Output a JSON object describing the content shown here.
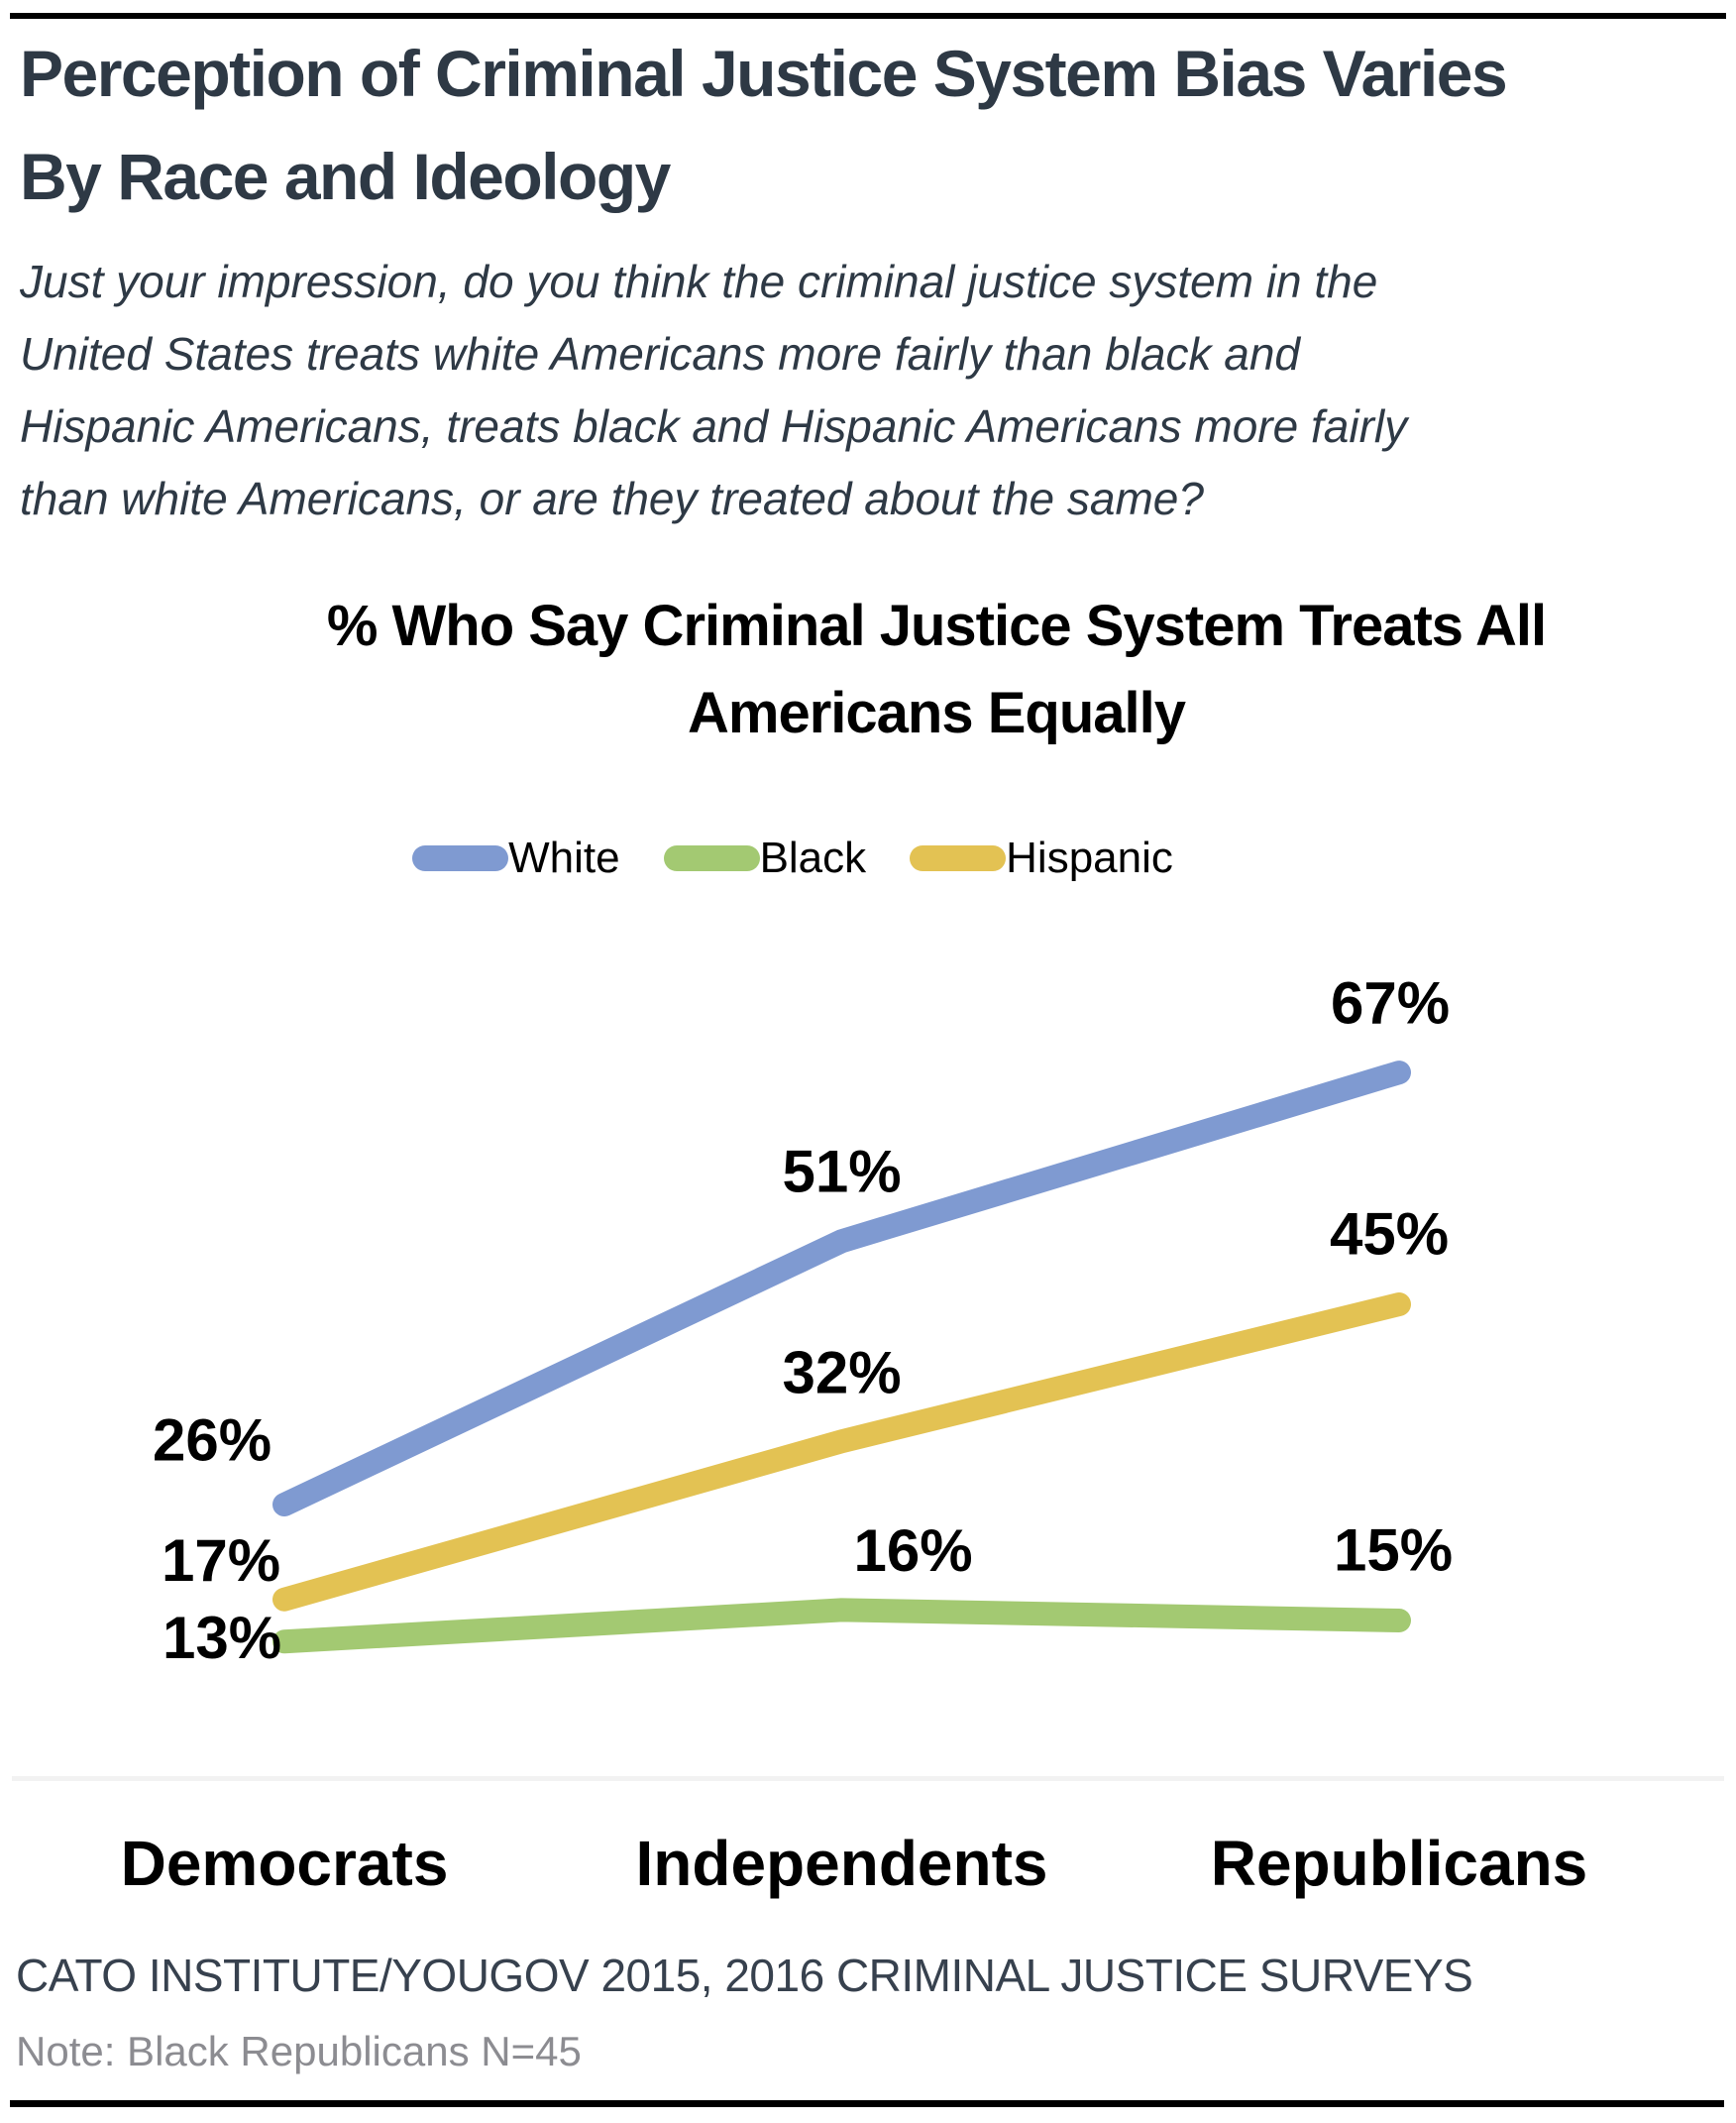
{
  "page": {
    "title": "Perception of Criminal Justice System Bias Varies\nBy Race and Ideology",
    "subtitle": "Just your impression, do you think the criminal justice system in the\nUnited States treats white Americans more fairly than black and\nHispanic Americans, treats black and Hispanic Americans more fairly\nthan white Americans, or are they treated about the same?",
    "source": "CATO INSTITUTE/YOUGOV 2015, 2016 CRIMINAL JUSTICE SURVEYS",
    "note": "Note: Black Republicans N=45"
  },
  "chart_data": {
    "type": "line",
    "title": "% Who Say Criminal Justice System Treats All\nAmericans Equally",
    "categories": [
      "Democrats",
      "Independents",
      "Republicans"
    ],
    "series": [
      {
        "name": "White",
        "values": [
          26,
          51,
          67
        ],
        "color": "#7F9AD1"
      },
      {
        "name": "Black",
        "values": [
          13,
          16,
          15
        ],
        "color": "#A3C972"
      },
      {
        "name": "Hispanic",
        "values": [
          17,
          32,
          45
        ],
        "color": "#E3C253"
      }
    ],
    "value_suffix": "%",
    "ylim": [
      0,
      80
    ],
    "grid": false,
    "legend_position": "top",
    "axis_line_color": "#F2F2F2",
    "text_color": "#000000"
  }
}
